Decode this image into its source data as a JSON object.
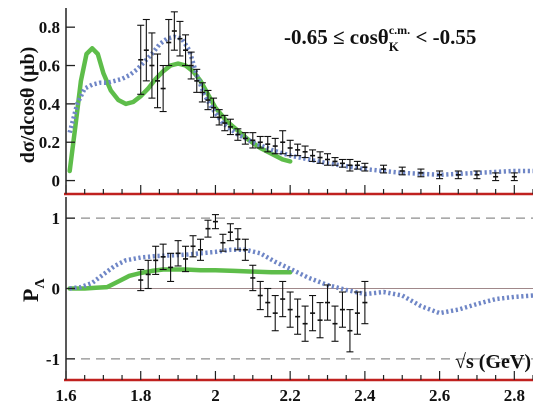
{
  "chart_data": [
    {
      "type": "line",
      "panel": "top",
      "ylabel": "dσ/dcosθ (μb)",
      "annotation": {
        "prefix": "-0.65 ≤ cosθ",
        "sub": "K",
        "sup": "c.m.",
        "suffix": " < -0.55"
      },
      "xlim": [
        1.6,
        2.85
      ],
      "ylim": [
        -0.07,
        0.9
      ],
      "yticks": [
        0,
        0.2,
        0.4,
        0.6,
        0.8
      ],
      "yticklabels": [
        "0",
        "0.2",
        "0.4",
        "0.6",
        "0.8"
      ],
      "grid": false,
      "axis_line_color": "#c0211f",
      "series": [
        {
          "style": "solid",
          "color": "#5ebd4a",
          "x": [
            1.61,
            1.625,
            1.64,
            1.655,
            1.67,
            1.685,
            1.7,
            1.72,
            1.74,
            1.76,
            1.78,
            1.8,
            1.82,
            1.84,
            1.86,
            1.88,
            1.9,
            1.92,
            1.94,
            1.96,
            1.98,
            2.0,
            2.03,
            2.06,
            2.09,
            2.12,
            2.15,
            2.18,
            2.2
          ],
          "y": [
            0.05,
            0.28,
            0.52,
            0.66,
            0.69,
            0.66,
            0.56,
            0.47,
            0.42,
            0.4,
            0.41,
            0.44,
            0.48,
            0.53,
            0.57,
            0.6,
            0.61,
            0.6,
            0.57,
            0.52,
            0.45,
            0.38,
            0.31,
            0.26,
            0.21,
            0.17,
            0.14,
            0.11,
            0.1
          ]
        },
        {
          "style": "dotted",
          "color": "#6f86c6",
          "x": [
            1.61,
            1.63,
            1.65,
            1.67,
            1.69,
            1.71,
            1.73,
            1.75,
            1.77,
            1.79,
            1.81,
            1.83,
            1.85,
            1.87,
            1.89,
            1.91,
            1.93,
            1.95,
            1.97,
            1.99,
            2.02,
            2.06,
            2.1,
            2.15,
            2.2,
            2.3,
            2.4,
            2.5,
            2.6,
            2.7,
            2.8,
            2.85
          ],
          "y": [
            0.25,
            0.4,
            0.48,
            0.5,
            0.51,
            0.51,
            0.52,
            0.53,
            0.55,
            0.58,
            0.62,
            0.66,
            0.71,
            0.74,
            0.75,
            0.74,
            0.68,
            0.55,
            0.45,
            0.38,
            0.3,
            0.24,
            0.2,
            0.16,
            0.13,
            0.09,
            0.06,
            0.04,
            0.03,
            0.04,
            0.05,
            0.05
          ]
        },
        {
          "style": "errorbars",
          "color": "#111111",
          "x": [
            1.8,
            1.815,
            1.83,
            1.845,
            1.86,
            1.875,
            1.89,
            1.905,
            1.92,
            1.935,
            1.95,
            1.965,
            1.98,
            1.995,
            2.01,
            2.025,
            2.04,
            2.06,
            2.08,
            2.1,
            2.12,
            2.14,
            2.16,
            2.18,
            2.2,
            2.22,
            2.24,
            2.26,
            2.28,
            2.3,
            2.32,
            2.34,
            2.36,
            2.38,
            2.4,
            2.45,
            2.5,
            2.55,
            2.6,
            2.65,
            2.7,
            2.75,
            2.8
          ],
          "y": [
            0.63,
            0.68,
            0.6,
            0.52,
            0.48,
            0.72,
            0.78,
            0.74,
            0.68,
            0.6,
            0.52,
            0.46,
            0.42,
            0.38,
            0.33,
            0.3,
            0.28,
            0.24,
            0.22,
            0.21,
            0.2,
            0.19,
            0.18,
            0.2,
            0.17,
            0.16,
            0.15,
            0.13,
            0.12,
            0.11,
            0.1,
            0.09,
            0.08,
            0.08,
            0.07,
            0.06,
            0.05,
            0.04,
            0.03,
            0.03,
            0.03,
            0.02,
            0.02
          ],
          "err": [
            0.18,
            0.16,
            0.17,
            0.14,
            0.12,
            0.12,
            0.1,
            0.09,
            0.08,
            0.07,
            0.06,
            0.05,
            0.05,
            0.05,
            0.04,
            0.04,
            0.04,
            0.03,
            0.03,
            0.04,
            0.03,
            0.04,
            0.04,
            0.06,
            0.04,
            0.03,
            0.03,
            0.03,
            0.03,
            0.03,
            0.02,
            0.02,
            0.03,
            0.02,
            0.02,
            0.02,
            0.02,
            0.02,
            0.02,
            0.02,
            0.02,
            0.02,
            0.02
          ]
        }
      ]
    },
    {
      "type": "line",
      "panel": "bottom",
      "ylabel": "P",
      "ylabel_sub": "Λ",
      "xlabel": "√s (GeV)",
      "xlim": [
        1.6,
        2.85
      ],
      "ylim": [
        -1.3,
        1.3
      ],
      "xticks": [
        1.6,
        1.8,
        2.0,
        2.2,
        2.4,
        2.6,
        2.8
      ],
      "xticklabels": [
        "1.6",
        "1.8",
        "2",
        "2.2",
        "2.4",
        "2.6",
        "2.8"
      ],
      "yticks": [
        -1,
        0,
        1
      ],
      "yticklabels": [
        "-1",
        "0",
        "1"
      ],
      "reference_lines": [
        1,
        0,
        -1
      ],
      "grid": false,
      "axis_line_color": "#c0211f",
      "series": [
        {
          "style": "solid",
          "color": "#5ebd4a",
          "x": [
            1.61,
            1.65,
            1.68,
            1.71,
            1.74,
            1.77,
            1.8,
            1.83,
            1.86,
            1.89,
            1.92,
            1.96,
            2.0,
            2.05,
            2.1,
            2.15,
            2.2
          ],
          "y": [
            0.0,
            0.0,
            0.01,
            0.02,
            0.1,
            0.18,
            0.22,
            0.25,
            0.27,
            0.27,
            0.27,
            0.26,
            0.26,
            0.25,
            0.24,
            0.23,
            0.23
          ]
        },
        {
          "style": "dotted",
          "color": "#6f86c6",
          "x": [
            1.61,
            1.64,
            1.67,
            1.7,
            1.73,
            1.76,
            1.8,
            1.84,
            1.88,
            1.92,
            1.96,
            2.0,
            2.04,
            2.08,
            2.12,
            2.16,
            2.2,
            2.25,
            2.3,
            2.35,
            2.4,
            2.45,
            2.5,
            2.55,
            2.6,
            2.65,
            2.7,
            2.75,
            2.8,
            2.85
          ],
          "y": [
            0.0,
            0.02,
            0.08,
            0.2,
            0.32,
            0.4,
            0.44,
            0.46,
            0.47,
            0.48,
            0.5,
            0.52,
            0.55,
            0.55,
            0.5,
            0.38,
            0.28,
            0.15,
            0.05,
            -0.02,
            -0.08,
            -0.05,
            -0.1,
            -0.25,
            -0.35,
            -0.3,
            -0.22,
            -0.15,
            -0.12,
            -0.1
          ]
        },
        {
          "style": "errorbars",
          "color": "#111111",
          "x": [
            1.8,
            1.82,
            1.84,
            1.86,
            1.88,
            1.9,
            1.92,
            1.94,
            1.96,
            1.98,
            2.0,
            2.02,
            2.04,
            2.06,
            2.08,
            2.1,
            2.12,
            2.14,
            2.16,
            2.18,
            2.2,
            2.22,
            2.24,
            2.26,
            2.28,
            2.3,
            2.32,
            2.34,
            2.36,
            2.38,
            2.4
          ],
          "y": [
            0.12,
            0.2,
            0.4,
            0.45,
            0.3,
            0.5,
            0.42,
            0.6,
            0.55,
            0.85,
            0.95,
            0.65,
            0.8,
            0.7,
            0.55,
            0.15,
            -0.1,
            -0.2,
            -0.35,
            -0.15,
            -0.3,
            -0.4,
            -0.5,
            -0.35,
            -0.45,
            -0.2,
            -0.5,
            -0.3,
            -0.6,
            -0.35,
            -0.2
          ],
          "err": [
            0.15,
            0.2,
            0.2,
            0.18,
            0.2,
            0.18,
            0.18,
            0.15,
            0.15,
            0.12,
            0.1,
            0.12,
            0.12,
            0.15,
            0.15,
            0.18,
            0.2,
            0.2,
            0.25,
            0.25,
            0.25,
            0.25,
            0.25,
            0.25,
            0.25,
            0.25,
            0.25,
            0.25,
            0.3,
            0.3,
            0.3
          ]
        }
      ]
    }
  ]
}
